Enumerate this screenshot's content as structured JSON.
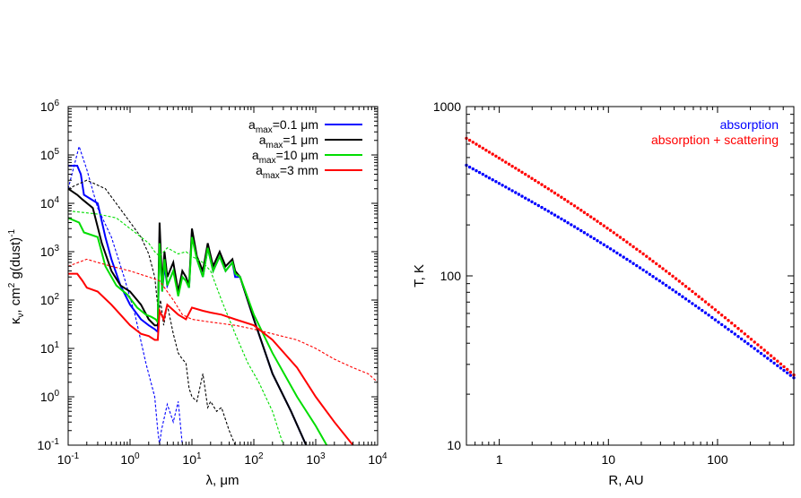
{
  "chart_data": [
    {
      "type": "line",
      "xlabel": "λ, μm",
      "ylabel_main": "κ",
      "ylabel_sub": "ν",
      "ylabel_rest": ", cm",
      "ylabel_sup": "2",
      "ylabel_tail": " g(dust)",
      "ylabel_sup2": "-1",
      "x_scale": "log",
      "y_scale": "log",
      "xlim": [
        0.1,
        10000
      ],
      "ylim": [
        0.1,
        1000000
      ],
      "x_ticks": [
        {
          "base": "10",
          "exp": "-1"
        },
        {
          "base": "10",
          "exp": "0"
        },
        {
          "base": "10",
          "exp": "1"
        },
        {
          "base": "10",
          "exp": "2"
        },
        {
          "base": "10",
          "exp": "3"
        },
        {
          "base": "10",
          "exp": "4"
        }
      ],
      "y_ticks": [
        {
          "base": "10",
          "exp": "-1"
        },
        {
          "base": "10",
          "exp": "0"
        },
        {
          "base": "10",
          "exp": "1"
        },
        {
          "base": "10",
          "exp": "2"
        },
        {
          "base": "10",
          "exp": "3"
        },
        {
          "base": "10",
          "exp": "4"
        },
        {
          "base": "10",
          "exp": "5"
        },
        {
          "base": "10",
          "exp": "6"
        }
      ],
      "legend_position": "top-right",
      "legend": [
        {
          "base": "a",
          "sub": "max",
          "rest": "=0.1 μm",
          "color": "#0000ff"
        },
        {
          "base": "a",
          "sub": "max",
          "rest": "=1 μm",
          "color": "#000000"
        },
        {
          "base": "a",
          "sub": "max",
          "rest": "=10 μm",
          "color": "#00dd00"
        },
        {
          "base": "a",
          "sub": "max",
          "rest": "=3 mm",
          "color": "#ff0000"
        }
      ],
      "series": [
        {
          "color": "#0000ff",
          "style": "solid",
          "points": [
            [
              0.1,
              60000
            ],
            [
              0.14,
              60000
            ],
            [
              0.16,
              40000
            ],
            [
              0.18,
              15000
            ],
            [
              0.3,
              10000
            ],
            [
              0.4,
              2000
            ],
            [
              0.5,
              700
            ],
            [
              0.7,
              200
            ],
            [
              1.0,
              80
            ],
            [
              1.5,
              40
            ],
            [
              2.0,
              30
            ],
            [
              2.5,
              25
            ],
            [
              2.8,
              22
            ],
            [
              3.0,
              2000
            ],
            [
              3.3,
              150
            ],
            [
              3.6,
              500
            ],
            [
              4.0,
              200
            ],
            [
              5,
              400
            ],
            [
              6,
              150
            ],
            [
              7,
              300
            ],
            [
              8,
              250
            ],
            [
              9,
              180
            ],
            [
              10,
              2500
            ],
            [
              12,
              700
            ],
            [
              15,
              300
            ],
            [
              18,
              1200
            ],
            [
              22,
              400
            ],
            [
              28,
              800
            ],
            [
              35,
              400
            ],
            [
              45,
              600
            ],
            [
              50,
              300
            ],
            [
              60,
              300
            ],
            [
              100,
              40
            ],
            [
              200,
              3
            ],
            [
              400,
              0.5
            ],
            [
              700,
              0.1
            ]
          ]
        },
        {
          "color": "#0000ff",
          "style": "dashed",
          "points": [
            [
              0.1,
              20000
            ],
            [
              0.15,
              150000
            ],
            [
              0.2,
              50000
            ],
            [
              0.3,
              8000
            ],
            [
              0.5,
              2000
            ],
            [
              0.8,
              300
            ],
            [
              1.2,
              50
            ],
            [
              1.8,
              5
            ],
            [
              2.5,
              1
            ],
            [
              2.8,
              0.2
            ],
            [
              3.0,
              0.1
            ],
            [
              3.2,
              0.2
            ],
            [
              4,
              0.7
            ],
            [
              5,
              0.3
            ],
            [
              6,
              0.8
            ],
            [
              7,
              0.1
            ],
            [
              9,
              0.1
            ]
          ]
        },
        {
          "color": "#000000",
          "style": "solid",
          "points": [
            [
              0.1,
              20000
            ],
            [
              0.14,
              15000
            ],
            [
              0.17,
              12000
            ],
            [
              0.25,
              8000
            ],
            [
              0.35,
              1500
            ],
            [
              0.5,
              400
            ],
            [
              0.7,
              200
            ],
            [
              1.0,
              150
            ],
            [
              1.5,
              80
            ],
            [
              2.0,
              40
            ],
            [
              2.5,
              30
            ],
            [
              2.8,
              30
            ],
            [
              3.0,
              4000
            ],
            [
              3.3,
              200
            ],
            [
              3.6,
              1000
            ],
            [
              4,
              300
            ],
            [
              5,
              600
            ],
            [
              6,
              150
            ],
            [
              7,
              400
            ],
            [
              8,
              300
            ],
            [
              9,
              200
            ],
            [
              10,
              3000
            ],
            [
              12,
              800
            ],
            [
              15,
              400
            ],
            [
              18,
              1500
            ],
            [
              22,
              500
            ],
            [
              28,
              1000
            ],
            [
              35,
              500
            ],
            [
              45,
              700
            ],
            [
              50,
              400
            ],
            [
              60,
              300
            ],
            [
              100,
              40
            ],
            [
              200,
              3
            ],
            [
              400,
              0.5
            ],
            [
              700,
              0.1
            ]
          ]
        },
        {
          "color": "#000000",
          "style": "dashed",
          "points": [
            [
              0.1,
              20000
            ],
            [
              0.2,
              30000
            ],
            [
              0.4,
              20000
            ],
            [
              0.8,
              6000
            ],
            [
              1.5,
              2000
            ],
            [
              2.0,
              900
            ],
            [
              2.5,
              300
            ],
            [
              2.9,
              50
            ],
            [
              3.1,
              100
            ],
            [
              3.5,
              30
            ],
            [
              4,
              80
            ],
            [
              5,
              20
            ],
            [
              6,
              8
            ],
            [
              7,
              6
            ],
            [
              8,
              5
            ],
            [
              9,
              1.5
            ],
            [
              10,
              1
            ],
            [
              12,
              0.8
            ],
            [
              15,
              3
            ],
            [
              18,
              0.6
            ],
            [
              20,
              0.8
            ],
            [
              25,
              0.5
            ],
            [
              30,
              0.6
            ],
            [
              40,
              0.2
            ],
            [
              50,
              0.1
            ],
            [
              60,
              0.1
            ]
          ]
        },
        {
          "color": "#00dd00",
          "style": "solid",
          "points": [
            [
              0.1,
              5000
            ],
            [
              0.15,
              4000
            ],
            [
              0.18,
              2500
            ],
            [
              0.3,
              2000
            ],
            [
              0.4,
              500
            ],
            [
              0.6,
              200
            ],
            [
              0.9,
              130
            ],
            [
              1.3,
              70
            ],
            [
              1.8,
              50
            ],
            [
              2.2,
              45
            ],
            [
              2.6,
              40
            ],
            [
              2.8,
              35
            ],
            [
              3.0,
              1500
            ],
            [
              3.3,
              150
            ],
            [
              3.6,
              700
            ],
            [
              4,
              200
            ],
            [
              5,
              400
            ],
            [
              6,
              120
            ],
            [
              7,
              300
            ],
            [
              8,
              250
            ],
            [
              9,
              180
            ],
            [
              10,
              2000
            ],
            [
              12,
              700
            ],
            [
              15,
              300
            ],
            [
              18,
              1200
            ],
            [
              22,
              400
            ],
            [
              28,
              800
            ],
            [
              35,
              400
            ],
            [
              45,
              600
            ],
            [
              50,
              350
            ],
            [
              60,
              300
            ],
            [
              100,
              50
            ],
            [
              200,
              8
            ],
            [
              500,
              1
            ],
            [
              1000,
              0.25
            ],
            [
              1500,
              0.1
            ]
          ]
        },
        {
          "color": "#00dd00",
          "style": "dashed",
          "points": [
            [
              0.1,
              7000
            ],
            [
              0.3,
              6000
            ],
            [
              0.6,
              5000
            ],
            [
              1.0,
              3000
            ],
            [
              1.5,
              2000
            ],
            [
              2.0,
              1500
            ],
            [
              2.5,
              1000
            ],
            [
              3.0,
              800
            ],
            [
              4,
              1200
            ],
            [
              6,
              900
            ],
            [
              8,
              1000
            ],
            [
              10,
              800
            ],
            [
              15,
              600
            ],
            [
              20,
              400
            ],
            [
              30,
              100
            ],
            [
              50,
              20
            ],
            [
              80,
              5
            ],
            [
              120,
              2
            ],
            [
              200,
              0.5
            ],
            [
              300,
              0.1
            ]
          ]
        },
        {
          "color": "#ff0000",
          "style": "solid",
          "points": [
            [
              0.1,
              350
            ],
            [
              0.14,
              350
            ],
            [
              0.17,
              250
            ],
            [
              0.2,
              180
            ],
            [
              0.3,
              150
            ],
            [
              0.5,
              80
            ],
            [
              0.7,
              50
            ],
            [
              1.0,
              30
            ],
            [
              1.5,
              20
            ],
            [
              2.0,
              18
            ],
            [
              2.5,
              15
            ],
            [
              2.8,
              15
            ],
            [
              3.0,
              60
            ],
            [
              3.5,
              40
            ],
            [
              4,
              80
            ],
            [
              6,
              50
            ],
            [
              8,
              40
            ],
            [
              10,
              70
            ],
            [
              15,
              60
            ],
            [
              20,
              55
            ],
            [
              30,
              50
            ],
            [
              50,
              40
            ],
            [
              100,
              30
            ],
            [
              200,
              15
            ],
            [
              500,
              4
            ],
            [
              1000,
              1
            ],
            [
              2000,
              0.3
            ],
            [
              4000,
              0.1
            ]
          ]
        },
        {
          "color": "#ff0000",
          "style": "dashed",
          "points": [
            [
              0.1,
              500
            ],
            [
              0.2,
              700
            ],
            [
              0.3,
              600
            ],
            [
              0.5,
              500
            ],
            [
              1.0,
              400
            ],
            [
              2.0,
              300
            ],
            [
              3.0,
              250
            ],
            [
              5,
              100
            ],
            [
              7,
              50
            ],
            [
              10,
              40
            ],
            [
              20,
              35
            ],
            [
              50,
              30
            ],
            [
              100,
              25
            ],
            [
              200,
              20
            ],
            [
              500,
              15
            ],
            [
              1000,
              10
            ],
            [
              2000,
              6
            ],
            [
              4000,
              4
            ],
            [
              7000,
              3
            ],
            [
              10000,
              2
            ]
          ]
        }
      ]
    },
    {
      "type": "scatter",
      "xlabel": "R, AU",
      "ylabel": "T, K",
      "x_scale": "log",
      "y_scale": "log",
      "xlim": [
        0.5,
        500
      ],
      "ylim": [
        10,
        1000
      ],
      "x_tick_labels": [
        "1",
        "10",
        "100"
      ],
      "y_tick_labels": [
        "10",
        "100",
        "1000"
      ],
      "legend_position": "top-right",
      "series": [
        {
          "name": "absorption",
          "color": "#0000ff",
          "T_at_xmin": 450,
          "T_at_xmax": 25
        },
        {
          "name": "absorption + scattering",
          "color": "#ff0000",
          "T_at_xmin": 650,
          "T_at_xmax": 26
        }
      ]
    }
  ]
}
